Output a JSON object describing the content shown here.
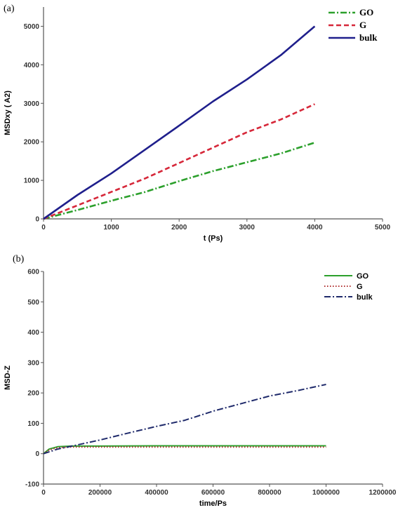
{
  "chart_data": [
    {
      "panel": "(a)",
      "type": "line",
      "xlabel": "t (Ps)",
      "ylabel": "MSDxy ( A2)",
      "xlim": [
        0,
        5000
      ],
      "ylim": [
        0,
        5500
      ],
      "xticks": [
        0,
        1000,
        2000,
        3000,
        4000,
        5000
      ],
      "yticks": [
        0,
        1000,
        2000,
        3000,
        4000,
        5000
      ],
      "grid": false,
      "legend_position": "top-right",
      "series": [
        {
          "name": "GO",
          "color": "#2ca02c",
          "style": "dashdot",
          "x": [
            0,
            500,
            1000,
            1500,
            2000,
            2500,
            3000,
            3500,
            4000
          ],
          "y": [
            0,
            230,
            470,
            700,
            980,
            1240,
            1470,
            1700,
            1980
          ]
        },
        {
          "name": "G",
          "color": "#d62739",
          "style": "dashed",
          "x": [
            0,
            500,
            1000,
            1500,
            2000,
            2500,
            3000,
            3500,
            4000
          ],
          "y": [
            0,
            350,
            700,
            1050,
            1450,
            1850,
            2250,
            2580,
            2980
          ]
        },
        {
          "name": "bulk",
          "color": "#1f1f8c",
          "style": "solid",
          "x": [
            0,
            500,
            1000,
            1500,
            2000,
            2500,
            3000,
            3500,
            4000
          ],
          "y": [
            0,
            620,
            1180,
            1800,
            2420,
            3050,
            3620,
            4250,
            5000
          ]
        }
      ]
    },
    {
      "panel": "(b)",
      "type": "line",
      "xlabel": "time/Ps",
      "ylabel": "MSD-Z",
      "xlim": [
        0,
        1200000
      ],
      "ylim": [
        -100,
        600
      ],
      "xticks": [
        0,
        200000,
        400000,
        600000,
        800000,
        1000000,
        1200000
      ],
      "yticks": [
        -100,
        0,
        100,
        200,
        300,
        400,
        500,
        600
      ],
      "grid": false,
      "legend_position": "top-right",
      "series": [
        {
          "name": "GO",
          "color": "#2ca02c",
          "style": "solid",
          "x": [
            0,
            20000,
            50000,
            100000,
            200000,
            400000,
            600000,
            800000,
            1000000
          ],
          "y": [
            0,
            15,
            23,
            25,
            25,
            26,
            26,
            26,
            26
          ]
        },
        {
          "name": "G",
          "color": "#b03030",
          "style": "dotted",
          "x": [
            0,
            20000,
            50000,
            100000,
            200000,
            400000,
            600000,
            800000,
            1000000
          ],
          "y": [
            0,
            12,
            20,
            22,
            22,
            22,
            22,
            22,
            22
          ]
        },
        {
          "name": "bulk",
          "color": "#1f2a6b",
          "style": "dashdot",
          "x": [
            0,
            50000,
            100000,
            200000,
            300000,
            400000,
            500000,
            600000,
            700000,
            800000,
            900000,
            1000000
          ],
          "y": [
            0,
            15,
            25,
            45,
            68,
            90,
            110,
            140,
            165,
            190,
            208,
            228
          ]
        }
      ]
    }
  ]
}
